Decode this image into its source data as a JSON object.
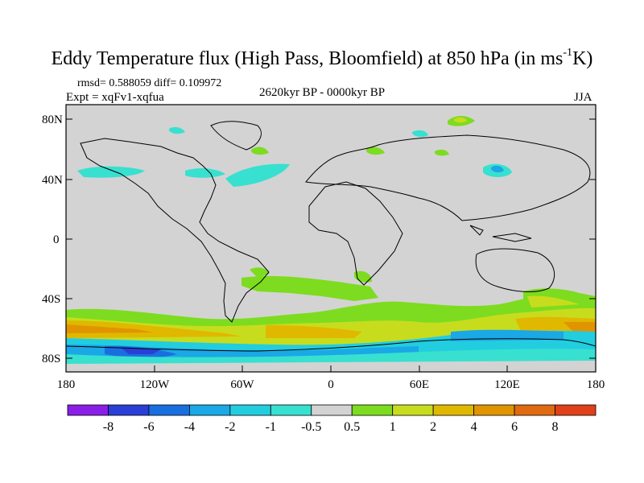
{
  "figure": {
    "title_main": "Eddy Temperature flux (High Pass, Bloomfield) at 850 hPa (in ms",
    "title_sup": "-1",
    "title_end": "K)",
    "stats": "rmsd= 0.588059 diff= 0.109972",
    "experiment": "Expt = xqFv1-xqfua",
    "period": "2620kyr BP - 0000kyr BP",
    "season": "JJA"
  },
  "axes": {
    "lat_labels": [
      "80N",
      "40N",
      "0",
      "40S",
      "80S"
    ],
    "lon_labels": [
      "180",
      "120W",
      "60W",
      "0",
      "60E",
      "120E",
      "180"
    ]
  },
  "colorbar": {
    "labels": [
      "-8",
      "-6",
      "-4",
      "-2",
      "-1",
      "-0.5",
      "0.5",
      "1",
      "2",
      "4",
      "6",
      "8"
    ],
    "colors": [
      "#8b1ee6",
      "#2a3fd6",
      "#1a6fe0",
      "#1aa8e6",
      "#22cde0",
      "#38e0d0",
      "#d3d3d3",
      "#7ddc1f",
      "#c8dc1e",
      "#e0b800",
      "#e09400",
      "#e06a10",
      "#e0401a"
    ]
  },
  "colors": {
    "land_background": "#d3d3d3",
    "coastline": "#000000"
  }
}
